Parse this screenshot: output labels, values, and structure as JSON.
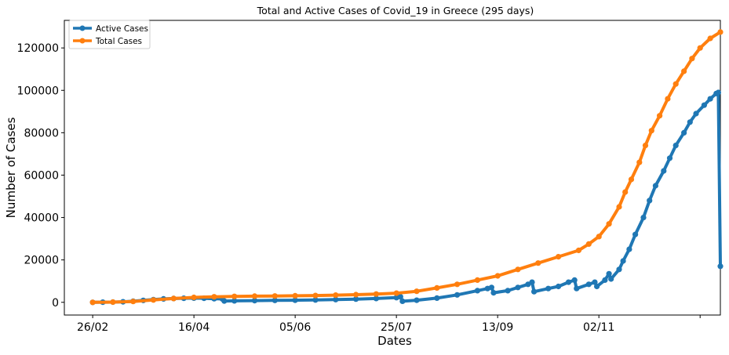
{
  "chart_data": {
    "type": "line",
    "title": "Total and Active Cases of Covid_19 in Greece (295 days)",
    "xlabel": "Dates",
    "ylabel": "Number of Cases",
    "xlim": [
      -14,
      310
    ],
    "ylim": [
      -6000,
      133000
    ],
    "grid": false,
    "legend_position": "top-left",
    "x_ticks": [
      {
        "x": 0,
        "label": "26/02"
      },
      {
        "x": 50,
        "label": "16/04"
      },
      {
        "x": 100,
        "label": "05/06"
      },
      {
        "x": 150,
        "label": "25/07"
      },
      {
        "x": 200,
        "label": "13/09"
      },
      {
        "x": 250,
        "label": "02/11"
      },
      {
        "x": 300,
        "label": ""
      }
    ],
    "y_ticks": [
      0,
      20000,
      40000,
      60000,
      80000,
      100000,
      120000
    ],
    "y_tick_labels": [
      "0",
      "20000",
      "40000",
      "60000",
      "80000",
      "100000",
      "120000"
    ],
    "series": [
      {
        "name": "Active Cases",
        "color": "#1f77b4",
        "points": [
          [
            0,
            0
          ],
          [
            5,
            50
          ],
          [
            10,
            100
          ],
          [
            15,
            250
          ],
          [
            20,
            500
          ],
          [
            25,
            900
          ],
          [
            30,
            1300
          ],
          [
            35,
            1600
          ],
          [
            40,
            1800
          ],
          [
            45,
            1900
          ],
          [
            50,
            2000
          ],
          [
            55,
            1900
          ],
          [
            60,
            1700
          ],
          [
            64,
            1600
          ],
          [
            65,
            600
          ],
          [
            70,
            700
          ],
          [
            80,
            800
          ],
          [
            90,
            900
          ],
          [
            100,
            1000
          ],
          [
            110,
            1100
          ],
          [
            120,
            1300
          ],
          [
            130,
            1500
          ],
          [
            140,
            1800
          ],
          [
            150,
            2200
          ],
          [
            152,
            2600
          ],
          [
            153,
            500
          ],
          [
            160,
            1000
          ],
          [
            170,
            2000
          ],
          [
            180,
            3500
          ],
          [
            190,
            5500
          ],
          [
            195,
            6500
          ],
          [
            197,
            7000
          ],
          [
            198,
            4500
          ],
          [
            205,
            5500
          ],
          [
            210,
            7000
          ],
          [
            215,
            8500
          ],
          [
            217,
            9500
          ],
          [
            218,
            5000
          ],
          [
            225,
            6500
          ],
          [
            230,
            7500
          ],
          [
            235,
            9500
          ],
          [
            238,
            10500
          ],
          [
            239,
            6500
          ],
          [
            245,
            8500
          ],
          [
            248,
            9500
          ],
          [
            249,
            7500
          ],
          [
            253,
            10500
          ],
          [
            255,
            13500
          ],
          [
            256,
            11000
          ],
          [
            260,
            15500
          ],
          [
            262,
            19500
          ],
          [
            265,
            25000
          ],
          [
            268,
            32000
          ],
          [
            272,
            40000
          ],
          [
            275,
            48000
          ],
          [
            278,
            55000
          ],
          [
            282,
            62000
          ],
          [
            285,
            68000
          ],
          [
            288,
            74000
          ],
          [
            292,
            80000
          ],
          [
            295,
            85000
          ],
          [
            298,
            89000
          ],
          [
            302,
            93000
          ],
          [
            305,
            96000
          ],
          [
            308,
            98500
          ],
          [
            309,
            99000
          ],
          [
            310,
            17000
          ]
        ]
      },
      {
        "name": "Total Cases",
        "color": "#ff7f0e",
        "points": [
          [
            0,
            0
          ],
          [
            10,
            100
          ],
          [
            20,
            400
          ],
          [
            30,
            1100
          ],
          [
            40,
            1800
          ],
          [
            50,
            2300
          ],
          [
            60,
            2600
          ],
          [
            70,
            2800
          ],
          [
            80,
            2900
          ],
          [
            90,
            3000
          ],
          [
            100,
            3100
          ],
          [
            110,
            3200
          ],
          [
            120,
            3400
          ],
          [
            130,
            3600
          ],
          [
            140,
            3900
          ],
          [
            150,
            4300
          ],
          [
            160,
            5200
          ],
          [
            170,
            6800
          ],
          [
            180,
            8500
          ],
          [
            190,
            10500
          ],
          [
            200,
            12500
          ],
          [
            210,
            15500
          ],
          [
            220,
            18500
          ],
          [
            230,
            21500
          ],
          [
            240,
            24500
          ],
          [
            245,
            27500
          ],
          [
            250,
            31000
          ],
          [
            255,
            37000
          ],
          [
            260,
            45000
          ],
          [
            263,
            52000
          ],
          [
            266,
            58000
          ],
          [
            270,
            66000
          ],
          [
            273,
            74000
          ],
          [
            276,
            81000
          ],
          [
            280,
            88000
          ],
          [
            284,
            96000
          ],
          [
            288,
            103000
          ],
          [
            292,
            109000
          ],
          [
            296,
            115000
          ],
          [
            300,
            120000
          ],
          [
            305,
            124500
          ],
          [
            310,
            127500
          ]
        ]
      }
    ]
  }
}
